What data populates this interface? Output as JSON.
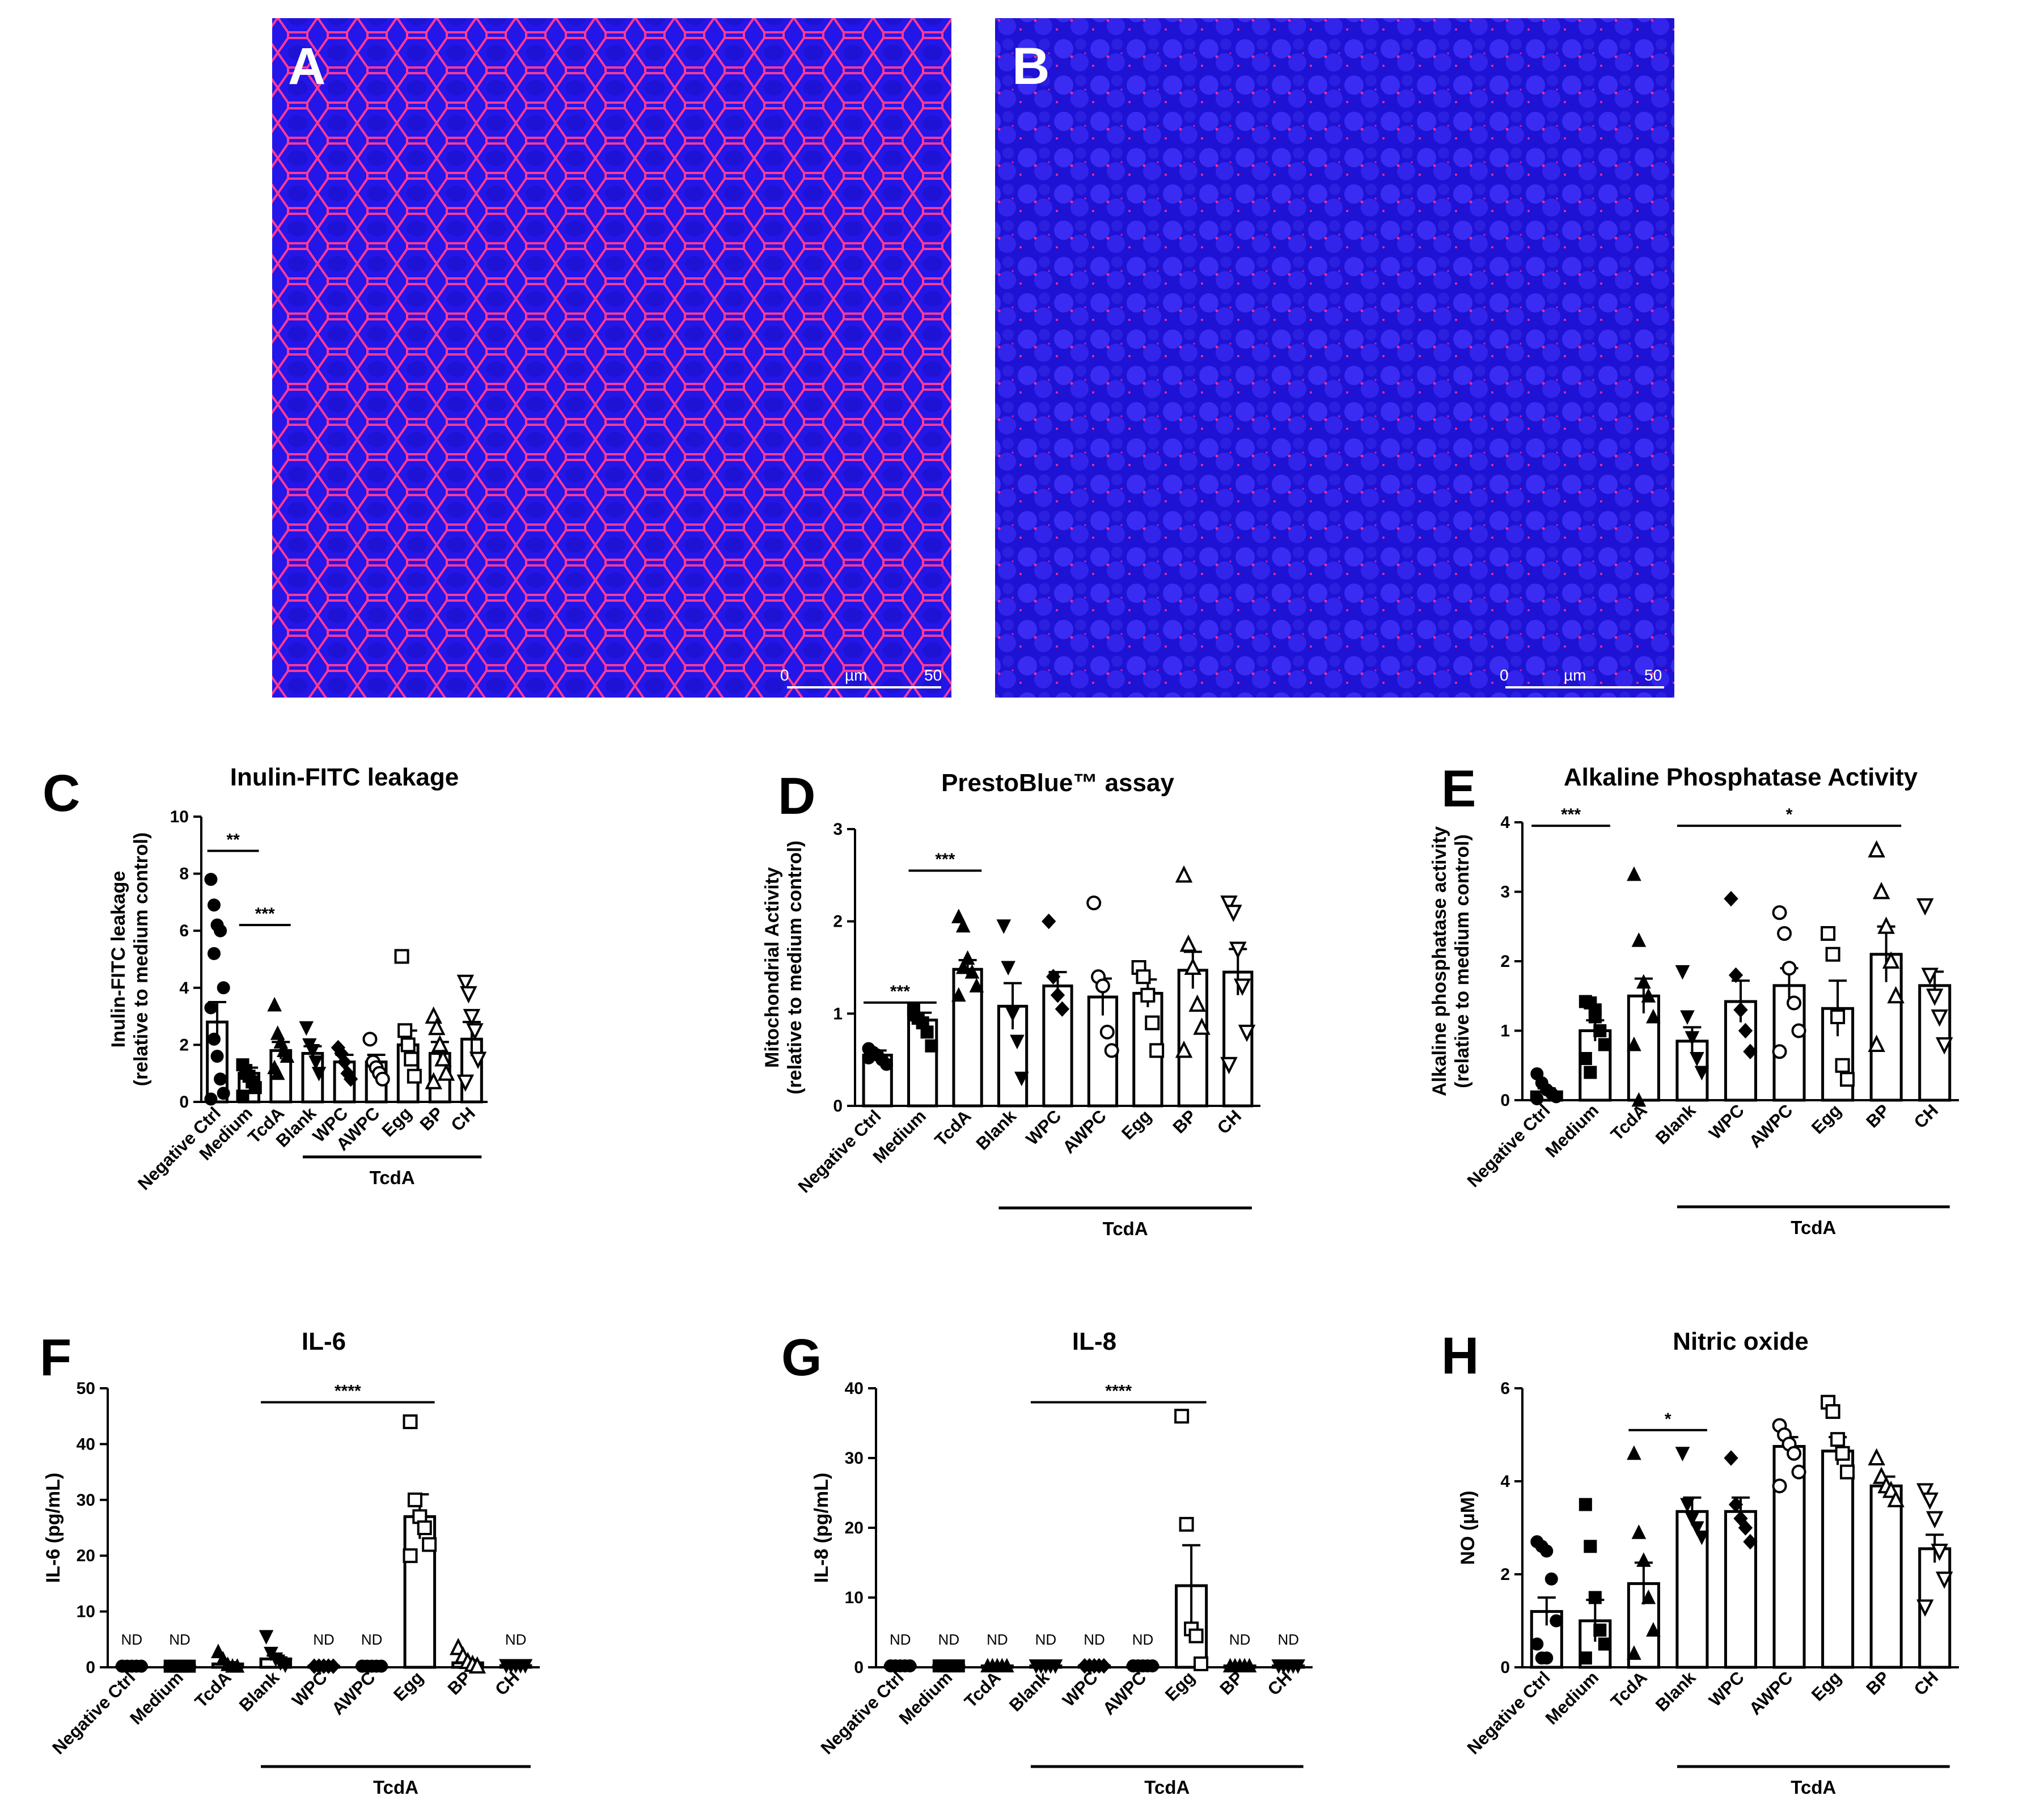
{
  "micrographs": [
    {
      "label": "A",
      "scale": {
        "start": "0",
        "unit": "µm",
        "end": "50"
      },
      "background": "#1a14e6",
      "network": "#ff2a8c"
    },
    {
      "label": "B",
      "scale": {
        "start": "0",
        "unit": "µm",
        "end": "50"
      },
      "background": "#1a14e6",
      "network": "#ff2a8c"
    }
  ],
  "categories": [
    "Negative Ctrl",
    "Medium",
    "TcdA",
    "Blank",
    "WPC",
    "AWPC",
    "Egg",
    "BP",
    "CH"
  ],
  "group_label": "TcdA",
  "chart_data": [
    {
      "type": "bar",
      "panel": "C",
      "title": "Inulin-FITC leakage",
      "ylabel_lines": [
        "Inulin-FITC leakage",
        "(relative to medium control)"
      ],
      "ylim": [
        0,
        10
      ],
      "yticks": [
        0,
        2,
        4,
        6,
        8,
        10
      ],
      "values": [
        2.8,
        1.0,
        1.8,
        1.7,
        1.4,
        1.4,
        2.0,
        1.7,
        2.2
      ],
      "errors": [
        0.7,
        0.2,
        0.3,
        0.25,
        0.25,
        0.25,
        0.5,
        0.4,
        0.6
      ],
      "points": [
        [
          7.8,
          6.9,
          6.2,
          6.0,
          4.0,
          3.3,
          2.2,
          1.6,
          0.8,
          0.3,
          0.1,
          5.2
        ],
        [
          1.3,
          1.1,
          0.9,
          0.7,
          0.5,
          0.2,
          1.0
        ],
        [
          3.4,
          2.4,
          2.1,
          1.8,
          1.6,
          1.2,
          1.0
        ],
        [
          2.6,
          2.0,
          1.8,
          1.4,
          1.0
        ],
        [
          1.9,
          1.7,
          1.4,
          1.0,
          0.8
        ],
        [
          2.2,
          1.4,
          1.2,
          1.0,
          0.8
        ],
        [
          5.1,
          2.5,
          2.0,
          1.5,
          0.9
        ],
        [
          3.0,
          2.6,
          2.0,
          1.5,
          1.0,
          0.7
        ],
        [
          4.2,
          3.8,
          3.0,
          2.5,
          1.5,
          0.7
        ]
      ],
      "markers": [
        "circle-f",
        "square-f",
        "triangle-f",
        "tridown-f",
        "diamond-f",
        "circle-o",
        "square-o",
        "triangle-o",
        "tridown-o"
      ],
      "sig": [
        {
          "from": 0,
          "to": 1,
          "y": 8.8,
          "label": "**"
        },
        {
          "from": 1,
          "to": 2,
          "y": 6.2,
          "label": "***"
        }
      ],
      "group_from": 3,
      "group_to": 8,
      "nd": []
    },
    {
      "type": "bar",
      "panel": "D",
      "title": "PrestoBlue™ assay",
      "ylabel_lines": [
        "Mitochondrial Activity",
        "(relative to medium control)"
      ],
      "ylim": [
        0,
        3
      ],
      "yticks": [
        0,
        1,
        2,
        3
      ],
      "values": [
        0.55,
        0.93,
        1.48,
        1.08,
        1.3,
        1.18,
        1.22,
        1.47,
        1.45
      ],
      "errors": [
        0.05,
        0.08,
        0.1,
        0.25,
        0.15,
        0.2,
        0.15,
        0.2,
        0.25
      ],
      "points": [
        [
          0.62,
          0.58,
          0.55,
          0.5,
          0.45,
          0.52
        ],
        [
          1.0,
          0.95,
          0.9,
          0.8,
          0.65,
          1.05
        ],
        [
          2.05,
          1.95,
          1.6,
          1.45,
          1.3,
          1.2,
          1.5
        ],
        [
          1.95,
          1.5,
          1.0,
          0.7,
          0.3
        ],
        [
          2.0,
          1.4,
          1.2,
          1.05
        ],
        [
          2.2,
          1.4,
          1.3,
          0.8,
          0.6
        ],
        [
          1.5,
          1.4,
          1.2,
          0.9,
          0.6
        ],
        [
          2.5,
          1.75,
          1.5,
          1.1,
          0.85,
          0.6
        ],
        [
          2.2,
          2.1,
          1.7,
          1.3,
          0.8,
          0.45
        ]
      ],
      "markers": [
        "circle-f",
        "square-f",
        "triangle-f",
        "tridown-f",
        "diamond-f",
        "circle-o",
        "square-o",
        "triangle-o",
        "tridown-o"
      ],
      "sig": [
        {
          "from": 0,
          "to": 1,
          "y": 1.12,
          "label": "***"
        },
        {
          "from": 1,
          "to": 2,
          "y": 2.55,
          "label": "***"
        }
      ],
      "group_from": 3,
      "group_to": 8,
      "nd": []
    },
    {
      "type": "bar",
      "panel": "E",
      "title": "Alkaline Phosphatase Activity",
      "ylabel_lines": [
        "Alkaline phosphatase activity",
        "(relative to medium control)"
      ],
      "ylim": [
        0,
        4
      ],
      "yticks": [
        0,
        1,
        2,
        3,
        4
      ],
      "values": [
        0.12,
        1.0,
        1.5,
        0.85,
        1.42,
        1.65,
        1.32,
        2.1,
        1.65
      ],
      "errors": [
        0.05,
        0.15,
        0.25,
        0.2,
        0.3,
        0.25,
        0.4,
        0.4,
        0.2
      ],
      "points": [
        [
          0.38,
          0.25,
          0.15,
          0.1,
          0.05,
          0.02
        ],
        [
          1.42,
          1.4,
          1.2,
          1.0,
          0.8,
          0.6,
          0.4,
          1.3
        ],
        [
          3.25,
          2.3,
          1.7,
          1.5,
          1.2,
          0.8,
          0.0
        ],
        [
          1.85,
          1.2,
          0.9,
          0.6,
          0.4
        ],
        [
          2.9,
          1.8,
          1.3,
          1.0,
          0.7
        ],
        [
          2.7,
          2.4,
          1.9,
          1.4,
          1.0,
          0.7
        ],
        [
          2.4,
          2.1,
          1.2,
          0.5,
          0.3
        ],
        [
          3.6,
          3.0,
          2.5,
          2.0,
          1.5,
          0.8
        ],
        [
          2.8,
          1.8,
          1.5,
          1.2,
          0.8
        ]
      ],
      "markers": [
        "circle-f",
        "square-f",
        "triangle-f",
        "tridown-f",
        "diamond-f",
        "circle-o",
        "square-o",
        "triangle-o",
        "tridown-o"
      ],
      "sig": [
        {
          "from": 0,
          "to": 1,
          "y": 3.95,
          "label": "***"
        },
        {
          "from": 3,
          "to": 7,
          "y": 3.95,
          "label": "*"
        }
      ],
      "group_from": 3,
      "group_to": 8,
      "nd": []
    },
    {
      "type": "bar",
      "panel": "F",
      "title": "IL-6",
      "ylabel_lines": [
        "IL-6 (pg/mL)"
      ],
      "ylim": [
        0,
        50
      ],
      "yticks": [
        0,
        10,
        20,
        30,
        40,
        50
      ],
      "values": [
        0.2,
        0.2,
        0.6,
        1.5,
        0.2,
        0.2,
        27.0,
        0.8,
        0.3
      ],
      "errors": [
        0,
        0,
        0.3,
        0.6,
        0,
        0,
        4.0,
        0.5,
        0
      ],
      "points": [
        [
          0.2,
          0.2,
          0.2,
          0.2,
          0.2,
          0.2
        ],
        [
          0.2,
          0.2,
          0.2,
          0.2,
          0.2
        ],
        [
          2.8,
          1.5,
          0.5,
          0.2,
          0.2
        ],
        [
          5.5,
          2.5,
          1.5,
          0.8,
          0.4
        ],
        [
          0.2,
          0.2,
          0.2,
          0.2,
          0.2
        ],
        [
          0.2,
          0.2,
          0.2,
          0.2,
          0.2,
          0.2
        ],
        [
          44.0,
          30.0,
          27.0,
          25.0,
          22.0,
          20.0
        ],
        [
          3.5,
          2.0,
          1.0,
          0.5,
          0.2
        ],
        [
          0.3,
          0.3,
          0.3,
          0.3,
          0.3
        ]
      ],
      "markers": [
        "circle-f",
        "square-f",
        "triangle-f",
        "tridown-f",
        "diamond-f",
        "circle-f",
        "square-o",
        "triangle-o",
        "tridown-f"
      ],
      "sig": [
        {
          "from": 3,
          "to": 6,
          "y": 47.5,
          "label": "****"
        }
      ],
      "group_from": 3,
      "group_to": 8,
      "nd": [
        {
          "index": 0,
          "label": "ND"
        },
        {
          "index": 1,
          "label": "ND"
        },
        {
          "index": 4,
          "label": "ND"
        },
        {
          "index": 5,
          "label": "ND"
        },
        {
          "index": 8,
          "label": "ND"
        }
      ]
    },
    {
      "type": "bar",
      "panel": "G",
      "title": "IL-8",
      "ylabel_lines": [
        "IL-8 (pg/mL)"
      ],
      "ylim": [
        0,
        40
      ],
      "yticks": [
        0,
        10,
        20,
        30,
        40
      ],
      "values": [
        0.2,
        0.2,
        0.2,
        0.2,
        0.2,
        0.2,
        11.7,
        0.2,
        0.2
      ],
      "errors": [
        0,
        0,
        0,
        0,
        0,
        0,
        5.8,
        0,
        0
      ],
      "points": [
        [
          0.2,
          0.2,
          0.2,
          0.2,
          0.2
        ],
        [
          0.2,
          0.2,
          0.2,
          0.2,
          0.2
        ],
        [
          0.2,
          0.2,
          0.2,
          0.2,
          0.2
        ],
        [
          0.2,
          0.2,
          0.2,
          0.2,
          0.2
        ],
        [
          0.2,
          0.2,
          0.2,
          0.2,
          0.2
        ],
        [
          0.2,
          0.2,
          0.2,
          0.2,
          0.2,
          0.2
        ],
        [
          36.0,
          20.5,
          5.5,
          4.5,
          0.5
        ],
        [
          0.2,
          0.2,
          0.2,
          0.2,
          0.2
        ],
        [
          0.2,
          0.2,
          0.2,
          0.2,
          0.2
        ]
      ],
      "markers": [
        "circle-f",
        "square-f",
        "triangle-f",
        "tridown-f",
        "diamond-f",
        "circle-f",
        "square-o",
        "triangle-f",
        "tridown-f"
      ],
      "sig": [
        {
          "from": 3,
          "to": 6,
          "y": 38.0,
          "label": "****"
        }
      ],
      "group_from": 3,
      "group_to": 8,
      "nd": [
        {
          "index": 0,
          "label": "ND"
        },
        {
          "index": 1,
          "label": "ND"
        },
        {
          "index": 2,
          "label": "ND"
        },
        {
          "index": 3,
          "label": "ND"
        },
        {
          "index": 4,
          "label": "ND"
        },
        {
          "index": 5,
          "label": "ND"
        },
        {
          "index": 7,
          "label": "ND"
        },
        {
          "index": 8,
          "label": "ND"
        }
      ]
    },
    {
      "type": "bar",
      "panel": "H",
      "title": "Nitric oxide",
      "ylabel_lines": [
        "NO (µM)"
      ],
      "ylim": [
        0,
        6
      ],
      "yticks": [
        0,
        2,
        4,
        6
      ],
      "values": [
        1.2,
        1.0,
        1.8,
        3.35,
        3.35,
        4.75,
        4.65,
        3.9,
        2.55
      ],
      "errors": [
        0.3,
        0.45,
        0.45,
        0.3,
        0.3,
        0.2,
        0.3,
        0.2,
        0.3
      ],
      "points": [
        [
          2.7,
          2.6,
          2.5,
          1.9,
          1.0,
          0.5,
          0.2,
          0.2
        ],
        [
          3.5,
          2.6,
          1.5,
          0.8,
          0.5,
          0.2
        ],
        [
          4.6,
          2.9,
          2.3,
          1.5,
          0.8,
          0.3
        ],
        [
          4.6,
          3.5,
          3.2,
          3.0,
          2.8
        ],
        [
          4.5,
          3.5,
          3.2,
          3.0,
          2.7
        ],
        [
          5.2,
          5.0,
          4.8,
          4.6,
          4.2,
          3.9
        ],
        [
          5.7,
          5.5,
          4.9,
          4.6,
          4.2
        ],
        [
          4.5,
          4.1,
          3.9,
          3.8,
          3.6
        ],
        [
          3.8,
          3.6,
          3.2,
          2.5,
          1.9,
          1.3
        ]
      ],
      "markers": [
        "circle-f",
        "square-f",
        "triangle-f",
        "tridown-f",
        "diamond-f",
        "circle-o",
        "square-o",
        "triangle-o",
        "tridown-o"
      ],
      "sig": [
        {
          "from": 2,
          "to": 3,
          "y": 5.1,
          "label": "*"
        }
      ],
      "group_from": 3,
      "group_to": 8,
      "nd": []
    }
  ]
}
